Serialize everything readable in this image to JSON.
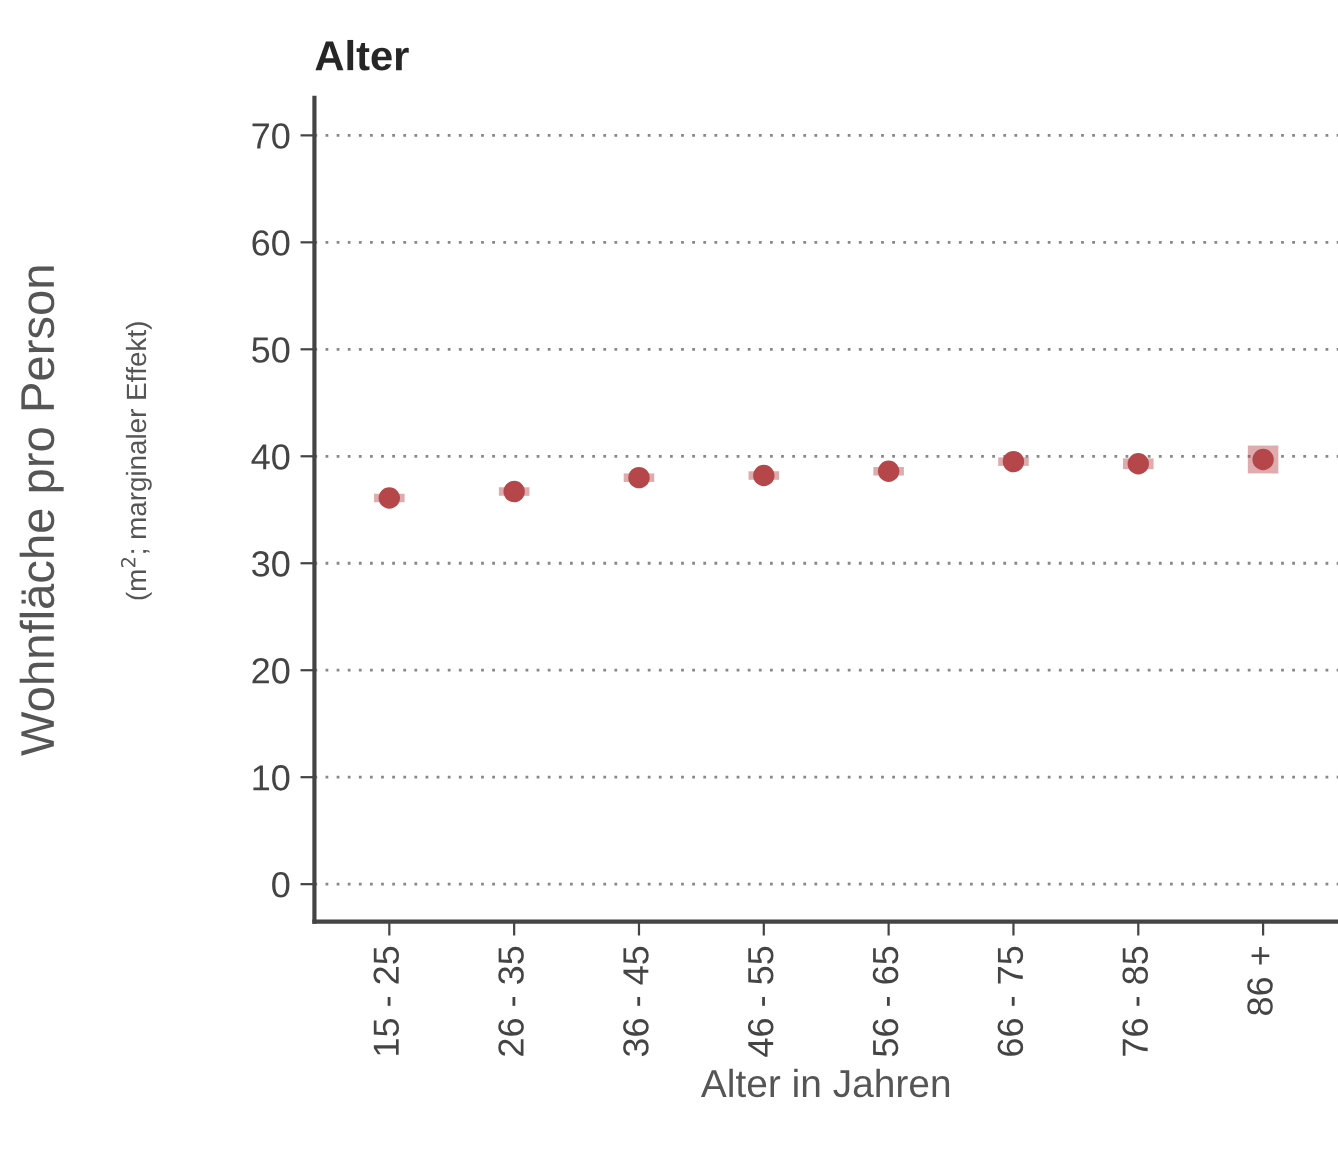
{
  "chart_data": {
    "type": "scatter",
    "title": "Alter",
    "xlabel": "Alter in Jahren",
    "ylabel": "Wohnfläche pro Person",
    "annotations": [
      "(m$^{2}$; marginaler Effekt)"
    ],
    "categories": [
      "15 - 25",
      "26 - 35",
      "36 - 45",
      "46 - 55",
      "56 - 65",
      "66 - 75",
      "76 - 85",
      "86 +"
    ],
    "series": [
      {
        "color": "#b5474b",
        "values": [
          36.1,
          36.7,
          38.0,
          38.2,
          38.6,
          39.5,
          39.3,
          39.7
        ],
        "errors": [
          0.4,
          0.4,
          0.4,
          0.4,
          0.4,
          0.4,
          0.5,
          1.3
        ]
      }
    ],
    "ylim": [
      -3.5,
      73.5
    ],
    "yticks": [
      0,
      10,
      20,
      30,
      40,
      50,
      60,
      70
    ],
    "grid": "y",
    "marker": "circle"
  }
}
